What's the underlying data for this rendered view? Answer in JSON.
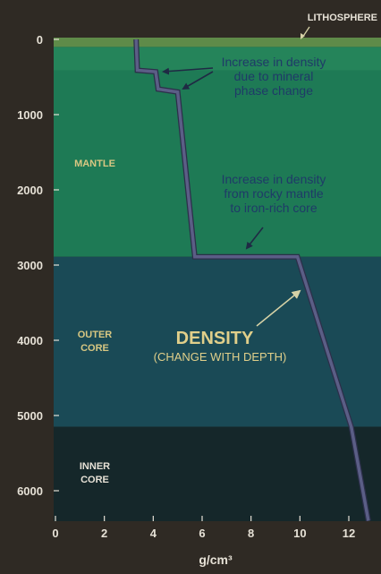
{
  "chart_data": {
    "type": "line",
    "title": "DENSITY",
    "subtitle": "(CHANGE WITH DEPTH)",
    "xlabel": "g/cm³",
    "ylabel": "",
    "xlim": [
      0,
      13
    ],
    "ylim": [
      0,
      6400
    ],
    "y_inverted": true,
    "x_ticks": [
      0,
      2,
      4,
      6,
      8,
      10,
      12
    ],
    "y_ticks": [
      0,
      1000,
      2000,
      3000,
      4000,
      5000,
      6000
    ],
    "grid": false,
    "series": [
      {
        "name": "",
        "color": "#5b5e86",
        "points": [
          {
            "x": 3.3,
            "y": 0
          },
          {
            "x": 3.35,
            "y": 410
          },
          {
            "x": 4.1,
            "y": 430
          },
          {
            "x": 4.2,
            "y": 660
          },
          {
            "x": 5.0,
            "y": 700
          },
          {
            "x": 5.7,
            "y": 2890
          },
          {
            "x": 9.9,
            "y": 2890
          },
          {
            "x": 12.1,
            "y": 5150
          },
          {
            "x": 12.8,
            "y": 6400
          }
        ]
      }
    ],
    "layers": [
      {
        "label": "LITHOSPHERE",
        "top": 0,
        "bottom": 100,
        "color": "#5f8b49",
        "label_color": "#e6e1d6"
      },
      {
        "label": "MANTLE",
        "top": 100,
        "bottom": 2890,
        "color": "#1e7a55",
        "label_color": "#d8c782"
      },
      {
        "label": "OUTER CORE",
        "top": 2890,
        "bottom": 5150,
        "color": "#1a4a56",
        "label_color": "#d8c782"
      },
      {
        "label": "INNER CORE",
        "top": 5150,
        "bottom": 6400,
        "color": "#15272a",
        "label_color": "#d8c782"
      }
    ],
    "annotations": [
      {
        "text": [
          "Increase in density",
          "due to mineral",
          "phase change"
        ]
      },
      {
        "text": [
          "Increase in density",
          "from rocky mantle",
          "to iron-rich core"
        ]
      }
    ],
    "layer_text": {
      "lithosphere": "LITHOSPHERE",
      "mantle": "MANTLE",
      "outer_core": [
        "OUTER",
        "CORE"
      ],
      "inner_core": [
        "INNER",
        "CORE"
      ]
    }
  }
}
